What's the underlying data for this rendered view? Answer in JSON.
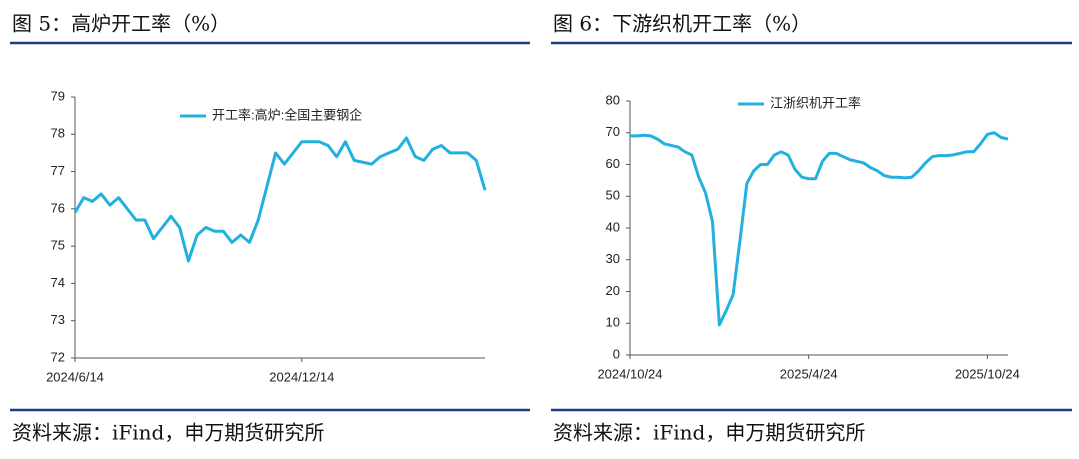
{
  "chart_data": [
    {
      "type": "line",
      "title": "图 5：高炉开工率（%）",
      "source": "资料来源：iFind，申万期货研究所",
      "categories": [
        "2024/6/14",
        null,
        null,
        null,
        null,
        null,
        null,
        null,
        null,
        null,
        null,
        null,
        null,
        null,
        null,
        null,
        null,
        null,
        null,
        null,
        null,
        null,
        null,
        null,
        null,
        null,
        "2024/12/14",
        null,
        null,
        null,
        null,
        null,
        null,
        null,
        null,
        null,
        null,
        null,
        null,
        null,
        null,
        null,
        null,
        null,
        null,
        null,
        null,
        null
      ],
      "series": [
        {
          "name": "开工率:高炉:全国主要钢企",
          "color": "#21b0df",
          "values": [
            75.9,
            76.3,
            76.2,
            76.4,
            76.1,
            76.3,
            76.0,
            75.7,
            75.7,
            75.2,
            75.5,
            75.8,
            75.5,
            74.6,
            75.3,
            75.5,
            75.4,
            75.4,
            75.1,
            75.3,
            75.1,
            75.7,
            76.6,
            77.5,
            77.2,
            77.5,
            77.8,
            77.8,
            77.8,
            77.7,
            77.4,
            77.8,
            77.3,
            77.25,
            77.2,
            77.4,
            77.5,
            77.6,
            77.9,
            77.4,
            77.3,
            77.6,
            77.7,
            77.5,
            77.5,
            77.5,
            77.3,
            76.5
          ]
        }
      ],
      "ylim": [
        72,
        79
      ],
      "yticks": [
        72,
        73,
        74,
        75,
        76,
        77,
        78,
        79
      ],
      "grid": false
    },
    {
      "type": "line",
      "title": "图 6：下游织机开工率（%）",
      "source": "资料来源：iFind，申万期货研究所",
      "categories": [
        "2024/10/24",
        null,
        null,
        null,
        null,
        null,
        null,
        null,
        null,
        null,
        null,
        null,
        null,
        null,
        null,
        null,
        null,
        null,
        null,
        null,
        null,
        null,
        null,
        null,
        null,
        null,
        "2025/4/24",
        null,
        null,
        null,
        null,
        null,
        null,
        null,
        null,
        null,
        null,
        null,
        null,
        null,
        null,
        null,
        null,
        null,
        null,
        null,
        null,
        null,
        null,
        null,
        null,
        null,
        "2025/10/24",
        null,
        null,
        null
      ],
      "series": [
        {
          "name": "江浙织机开工率",
          "color": "#21b0df",
          "values": [
            69,
            69,
            69.2,
            69,
            68,
            66.5,
            66,
            65.5,
            64,
            63,
            56,
            51,
            42,
            9.5,
            14,
            19,
            36,
            54,
            58,
            60,
            60,
            63,
            64,
            63,
            58.5,
            56,
            55.5,
            55.5,
            61,
            63.5,
            63.5,
            62.5,
            61.5,
            61,
            60.5,
            59,
            58,
            56.5,
            56,
            56,
            55.8,
            56,
            58,
            60.5,
            62.5,
            62.8,
            62.8,
            63,
            63.5,
            64,
            64,
            66.5,
            69.5,
            70,
            68.5,
            68
          ]
        }
      ],
      "ylim": [
        0,
        80
      ],
      "yticks": [
        0,
        10,
        20,
        30,
        40,
        50,
        60,
        70,
        80
      ],
      "grid": false
    }
  ]
}
